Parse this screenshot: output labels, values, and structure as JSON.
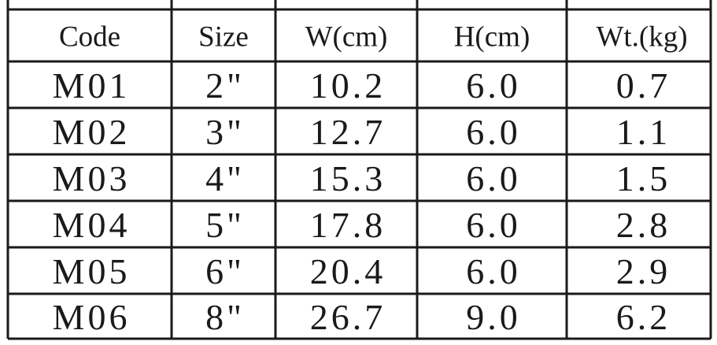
{
  "table": {
    "header": [
      "Code",
      "Size",
      "W(cm)",
      "H(cm)",
      "Wt.(kg)"
    ],
    "rows": [
      [
        "M01",
        "2\"",
        "10.2",
        "6.0",
        "0.7"
      ],
      [
        "M02",
        "3\"",
        "12.7",
        "6.0",
        "1.1"
      ],
      [
        "M03",
        "4\"",
        "15.3",
        "6.0",
        "1.5"
      ],
      [
        "M04",
        "5\"",
        "17.8",
        "6.0",
        "2.8"
      ],
      [
        "M05",
        "6\"",
        "20.4",
        "6.0",
        "2.9"
      ],
      [
        "M06",
        "8\"",
        "26.7",
        "9.0",
        "6.2"
      ]
    ]
  }
}
